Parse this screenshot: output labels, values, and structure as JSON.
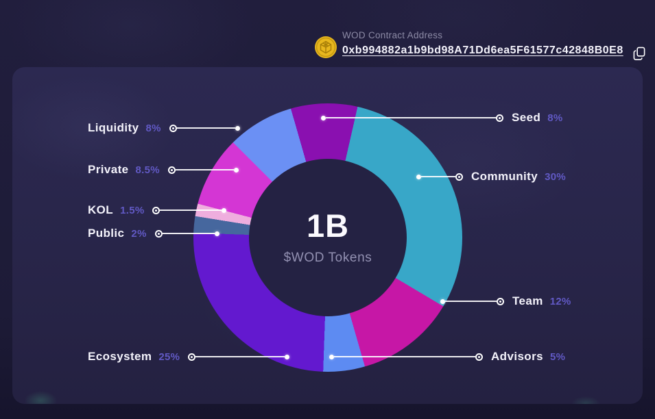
{
  "header": {
    "label": "WOD Contract Address",
    "address": "0xb994882a1b9bd98A71Dd6ea5F61577c42848B0E8",
    "coin_icon": "wod-gold-coin",
    "copy_icon": "copy-to-clipboard"
  },
  "chart_data": {
    "type": "pie",
    "title": "WOD token allocation donut",
    "total_label": "1B",
    "total_sublabel": "$WOD Tokens",
    "start_angle_deg": -16,
    "legend_position": "callouts-around-donut",
    "units": "percent",
    "segments": [
      {
        "label": "Seed",
        "value": 8,
        "pct_label": "8%",
        "color": "#8a10b0"
      },
      {
        "label": "Community",
        "value": 30,
        "pct_label": "30%",
        "color": "#38a7c8"
      },
      {
        "label": "Team",
        "value": 12,
        "pct_label": "12%",
        "color": "#c617a6"
      },
      {
        "label": "Advisors",
        "value": 5,
        "pct_label": "5%",
        "color": "#5d8bf2"
      },
      {
        "label": "Ecosystem",
        "value": 25,
        "pct_label": "25%",
        "color": "#6319cf"
      },
      {
        "label": "Public",
        "value": 2,
        "pct_label": "2%",
        "color": "#46679e"
      },
      {
        "label": "KOL",
        "value": 1.5,
        "pct_label": "1.5%",
        "color": "#efaede"
      },
      {
        "label": "Private",
        "value": 8.5,
        "pct_label": "8.5%",
        "color": "#d436d4"
      },
      {
        "label": "Liquidity",
        "value": 8,
        "pct_label": "8%",
        "color": "#6b90f4"
      }
    ]
  },
  "colors": {
    "background": "#1d1b37",
    "panel": "#282549",
    "percent_accent": "#6159c4",
    "label_text": "#f4f3fb",
    "muted_text": "#8d8ba6",
    "coin_gold": "#e8b71e",
    "donut_hole": "#242243"
  }
}
